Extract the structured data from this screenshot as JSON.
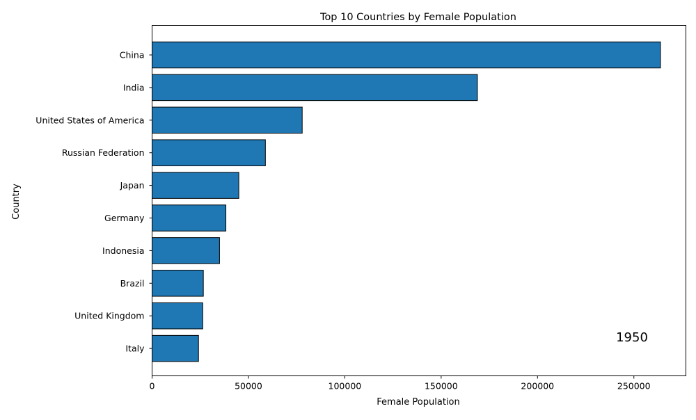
{
  "chart_data": {
    "type": "bar",
    "orientation": "horizontal",
    "title": "Top 10 Countries by Female Population",
    "xlabel": "Female Population",
    "ylabel": "Country",
    "categories": [
      "China",
      "India",
      "United States of America",
      "Russian Federation",
      "Japan",
      "Germany",
      "Indonesia",
      "Brazil",
      "United Kingdom",
      "Italy"
    ],
    "values": [
      263800,
      168800,
      77900,
      58800,
      45000,
      38300,
      35000,
      26600,
      26300,
      24100
    ],
    "xlim": [
      0,
      277000
    ],
    "xticks": [
      0,
      50000,
      100000,
      150000,
      200000,
      250000
    ],
    "annotation": "1950",
    "grid": false,
    "bar_color": "#1f77b4",
    "edge_color": "#000000"
  }
}
